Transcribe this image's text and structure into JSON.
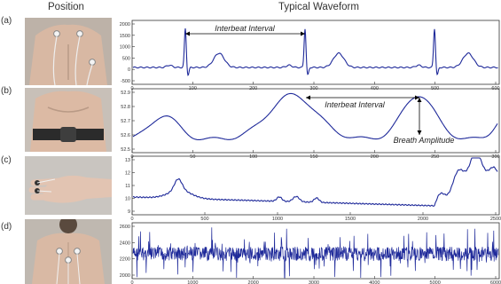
{
  "headers": {
    "position": "Position",
    "waveform": "Typical Waveform"
  },
  "rows": [
    {
      "label": "(a)",
      "y_ticks": [
        "2000",
        "1500",
        "1000",
        "500",
        "0",
        "-500"
      ],
      "x_ticks": [
        "0",
        "100",
        "200",
        "300",
        "400",
        "500",
        "600"
      ],
      "annotations": [
        "Interbeat Interval"
      ]
    },
    {
      "label": "(b)",
      "y_ticks": [
        "52.9",
        "52.8",
        "52.7",
        "52.6",
        "52.5"
      ],
      "x_ticks": [
        "0",
        "50",
        "100",
        "150",
        "200",
        "250",
        "300"
      ],
      "annotations": [
        "Interbeat Interval",
        "Breath Amplitude"
      ]
    },
    {
      "label": "(c)",
      "y_ticks": [
        "13",
        "12",
        "11",
        "10",
        "9"
      ],
      "x_ticks": [
        "0",
        "500",
        "1000",
        "1500",
        "2000",
        "2500"
      ],
      "annotations": []
    },
    {
      "label": "(d)",
      "y_ticks": [
        "2600",
        "2400",
        "2200",
        "2000"
      ],
      "x_ticks": [
        "0",
        "1000",
        "2000",
        "3000",
        "4000",
        "5000",
        "6000"
      ],
      "annotations": []
    }
  ],
  "colors": {
    "trace": "#1f2a9a",
    "axis": "#333333",
    "photo_bg": "#cfc9c3"
  }
}
